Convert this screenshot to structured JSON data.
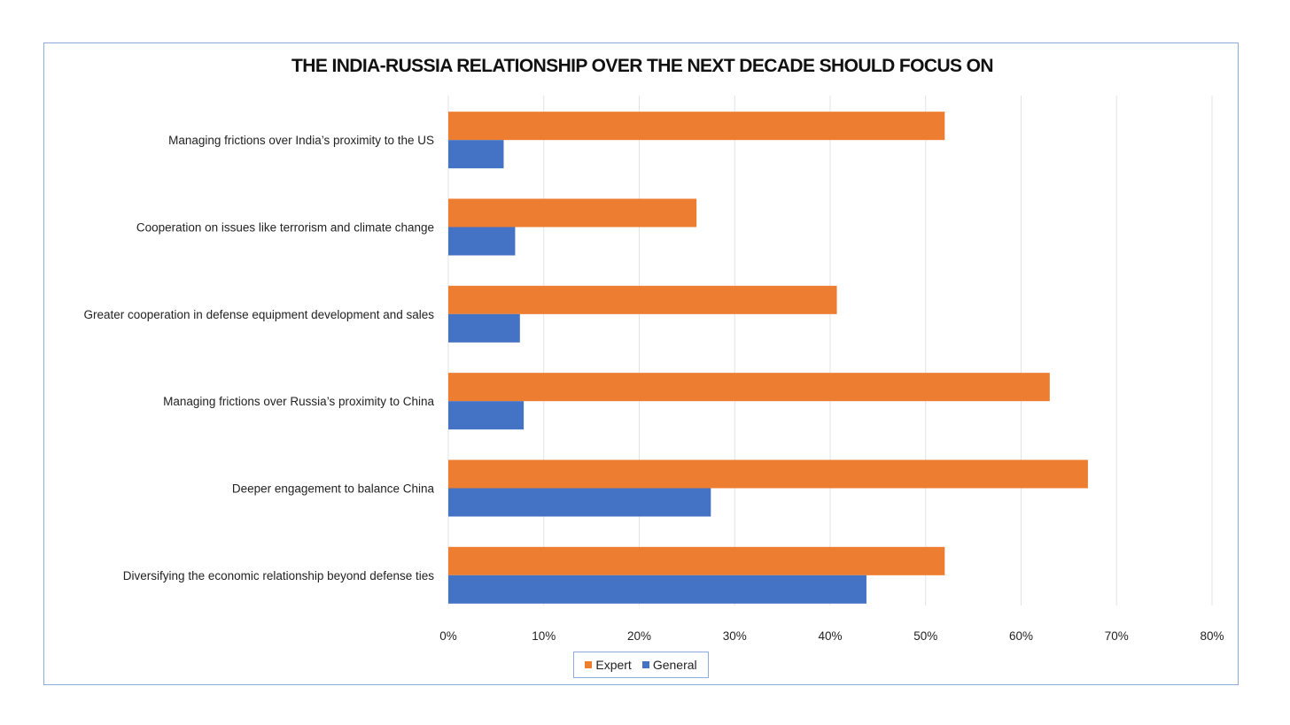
{
  "chart_data": {
    "type": "bar",
    "orientation": "horizontal",
    "title": "THE INDIA-RUSSIA RELATIONSHIP OVER THE NEXT DECADE SHOULD FOCUS ON",
    "categories": [
      "Managing frictions over India’s proximity to the US",
      "Cooperation on issues like terrorism and climate change",
      "Greater cooperation in defense equipment development and sales",
      "Managing frictions over Russia’s proximity to China",
      "Deeper engagement to balance China",
      "Diversifying the economic relationship beyond defense ties"
    ],
    "series": [
      {
        "name": "Expert",
        "color": "#ed7d31",
        "values": [
          52,
          26,
          40.7,
          63,
          67,
          52
        ]
      },
      {
        "name": "General",
        "color": "#4472c4",
        "values": [
          5.8,
          7,
          7.5,
          7.9,
          27.5,
          43.8
        ]
      }
    ],
    "xlim": [
      0,
      80
    ],
    "xticks": [
      "0%",
      "10%",
      "20%",
      "30%",
      "40%",
      "50%",
      "60%",
      "70%",
      "80%"
    ],
    "grid": true,
    "legend": "bottom"
  }
}
